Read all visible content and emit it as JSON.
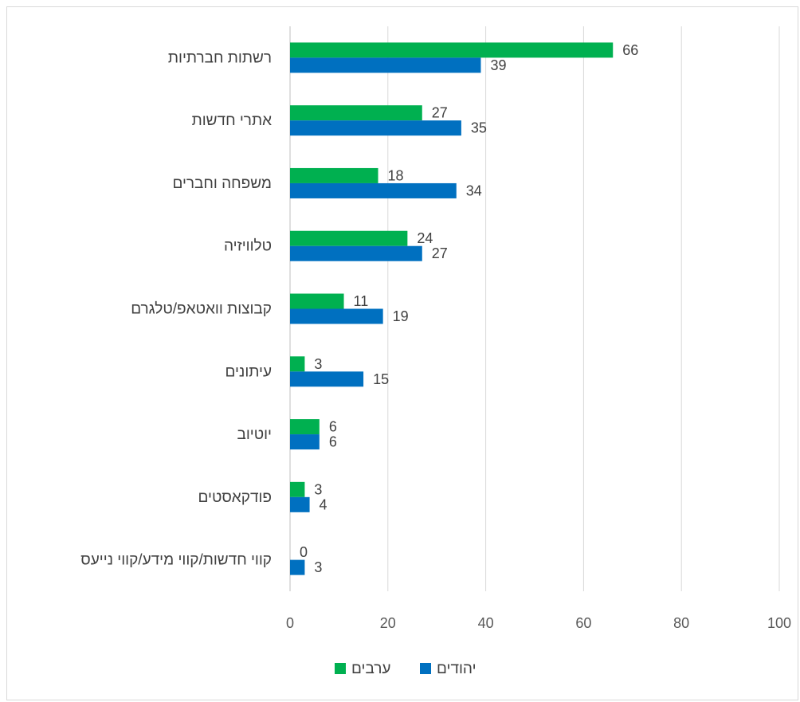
{
  "chart_data": {
    "type": "bar",
    "orientation": "horizontal",
    "categories": [
      "רשתות חברתיות",
      "אתרי חדשות",
      "משפחה וחברים",
      "טלוויזיה",
      "קבוצות וואטאפ/טלגרם",
      "עיתונים",
      "יוטיוב",
      "פודקאסטים",
      "קווי חדשות/קווי מידע/קווי נייעס"
    ],
    "series": [
      {
        "name": "ערבים",
        "color": "#00b050",
        "values": [
          66,
          27,
          18,
          24,
          11,
          3,
          6,
          3,
          0
        ]
      },
      {
        "name": "יהודים",
        "color": "#0070c0",
        "values": [
          39,
          35,
          34,
          27,
          19,
          15,
          6,
          4,
          3
        ]
      }
    ],
    "xlim": [
      0,
      100
    ],
    "xticks": [
      "0",
      "20",
      "40",
      "60",
      "80",
      "100"
    ],
    "grid": true,
    "legend_position": "bottom"
  }
}
